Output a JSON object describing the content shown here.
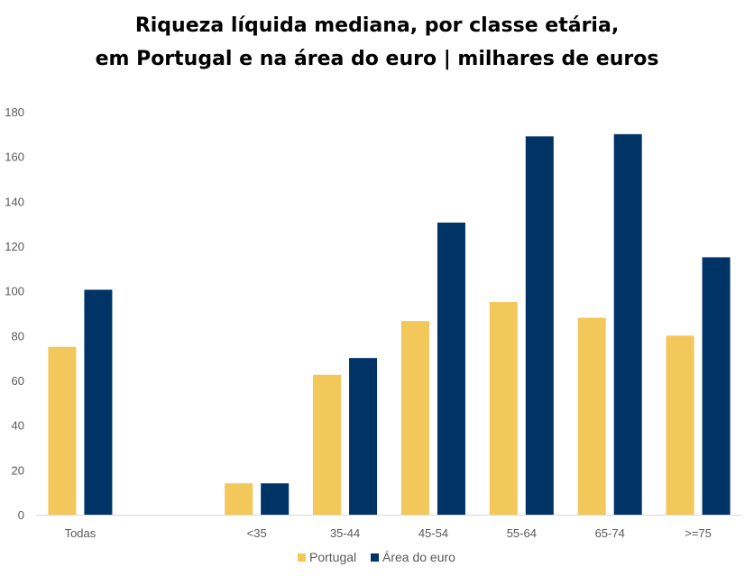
{
  "chart_data": {
    "type": "bar",
    "title_line1": "Riqueza líquida mediana, por classe etária,",
    "title_line2": "em Portugal e na área do euro | milhares de euros",
    "categories": [
      "Todas",
      "",
      "<35",
      "35-44",
      "45-54",
      "55-64",
      "65-74",
      ">=75"
    ],
    "series": [
      {
        "name": "Portugal",
        "color": "#F2C85B",
        "values": [
          75,
          null,
          14,
          62.5,
          86.5,
          95,
          88,
          80
        ]
      },
      {
        "name": "Área do euro",
        "color": "#003366",
        "values": [
          100.5,
          null,
          14,
          70,
          130.5,
          169,
          170,
          115
        ]
      }
    ],
    "ylim": [
      0,
      180
    ],
    "yticks": [
      0,
      20,
      40,
      60,
      80,
      100,
      120,
      140,
      160,
      180
    ],
    "grid": false,
    "legend_position": "bottom-center"
  }
}
